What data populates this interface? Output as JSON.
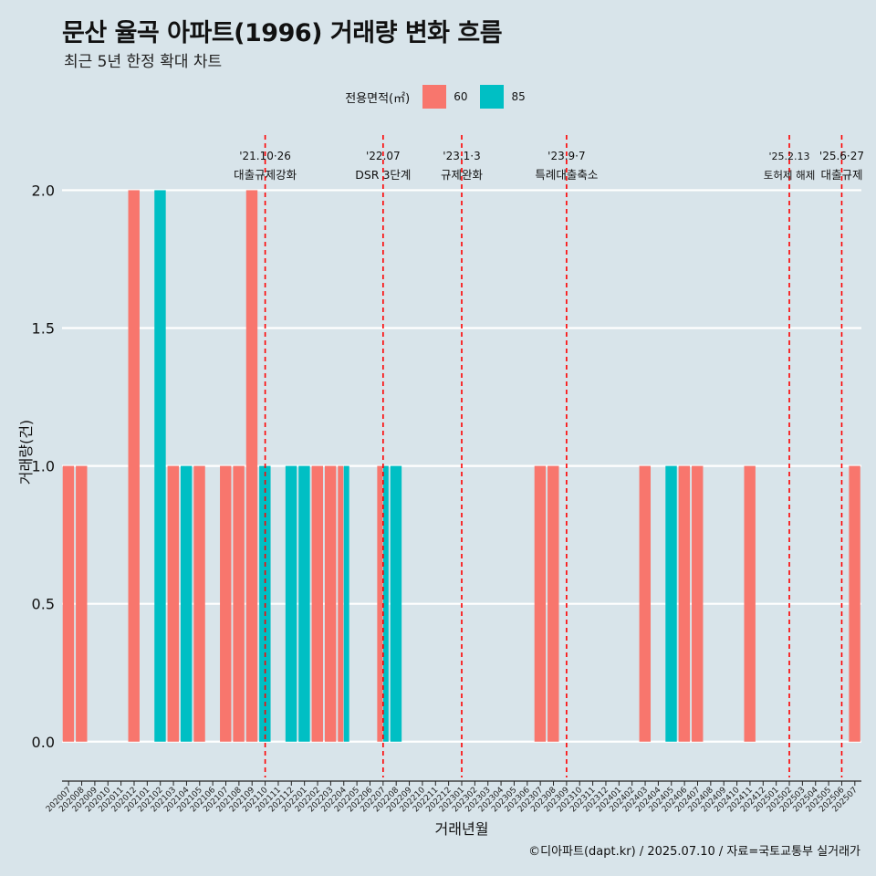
{
  "header": {
    "title": "문산 율곡 아파트(1996) 거래량 변화 흐름",
    "subtitle": "최근 5년 한정 확대 차트"
  },
  "legend": {
    "title": "전용면적(㎡)",
    "items": [
      {
        "label": "60",
        "color": "#f8766d"
      },
      {
        "label": "85",
        "color": "#00bfc4"
      }
    ]
  },
  "caption": "©디아파트(dapt.kr) / 2025.07.10 / 자료=국토교통부 실거래가",
  "chart_data": {
    "type": "bar",
    "xlabel": "거래년월",
    "ylabel": "거래량(건)",
    "ylim": [
      -0.1,
      2.2
    ],
    "y_ticks": [
      0.0,
      0.5,
      1.0,
      1.5,
      2.0
    ],
    "y_tick_labels": [
      "0.0",
      "0.5",
      "1.0",
      "1.5",
      "2.0"
    ],
    "grid": true,
    "legend_position": "top",
    "categories": [
      "202007",
      "202008",
      "202009",
      "202010",
      "202011",
      "202012",
      "202101",
      "202102",
      "202103",
      "202104",
      "202105",
      "202106",
      "202107",
      "202108",
      "202109",
      "202110",
      "202111",
      "202112",
      "202201",
      "202202",
      "202203",
      "202204",
      "202205",
      "202206",
      "202207",
      "202208",
      "202209",
      "202210",
      "202211",
      "202212",
      "202301",
      "202302",
      "202303",
      "202304",
      "202305",
      "202306",
      "202307",
      "202308",
      "202309",
      "202310",
      "202311",
      "202312",
      "202401",
      "202402",
      "202403",
      "202404",
      "202405",
      "202406",
      "202407",
      "202408",
      "202409",
      "202410",
      "202411",
      "202412",
      "202501",
      "202502",
      "202503",
      "202504",
      "202505",
      "202506",
      "202507"
    ],
    "series": [
      {
        "name": "60",
        "color": "#f8766d",
        "values": [
          1,
          1,
          0,
          0,
          0,
          2,
          0,
          0,
          1,
          0,
          1,
          0,
          1,
          1,
          2,
          0,
          0,
          0,
          0,
          1,
          1,
          1,
          0,
          0,
          1,
          0,
          0,
          0,
          0,
          0,
          0,
          0,
          0,
          0,
          0,
          0,
          1,
          1,
          0,
          0,
          0,
          0,
          0,
          0,
          1,
          0,
          0,
          1,
          1,
          0,
          0,
          0,
          1,
          0,
          0,
          0,
          0,
          0,
          0,
          0,
          1
        ]
      },
      {
        "name": "85",
        "color": "#00bfc4",
        "values": [
          0,
          0,
          0,
          0,
          0,
          0,
          0,
          2,
          0,
          1,
          0,
          0,
          0,
          0,
          0,
          1,
          0,
          1,
          1,
          0,
          0,
          1,
          0,
          0,
          1,
          1,
          0,
          0,
          0,
          0,
          0,
          0,
          0,
          0,
          0,
          0,
          0,
          0,
          0,
          0,
          0,
          0,
          0,
          0,
          0,
          0,
          1,
          0,
          0,
          0,
          0,
          0,
          0,
          0,
          0,
          0,
          0,
          0,
          0,
          0,
          0
        ]
      }
    ],
    "annotations": [
      {
        "month": "202110",
        "date": "'21.10·26",
        "label": "대출규제강화"
      },
      {
        "month": "202207",
        "date": "'22.07",
        "label": "DSR 3단계"
      },
      {
        "month": "202301",
        "date": "'23.1·3",
        "label": "규제완화"
      },
      {
        "month": "202309",
        "date": "'23.9·7",
        "label": "특례대출축소"
      },
      {
        "month": "202502",
        "date": "'25.2.13",
        "label": "토허제 해제"
      },
      {
        "month": "202506",
        "date": "'25.6·27",
        "label": "대출규제"
      }
    ],
    "annotation_color": "#ff0000"
  }
}
